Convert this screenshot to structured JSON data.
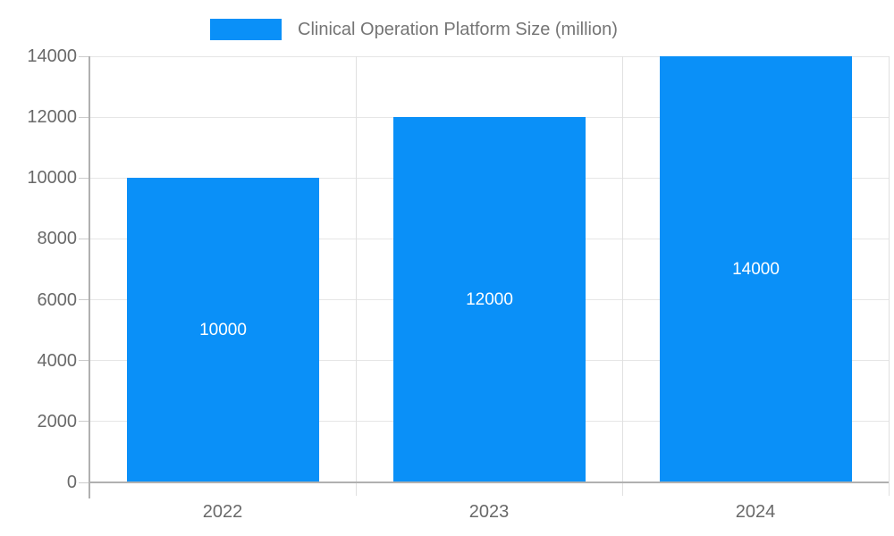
{
  "legend": {
    "label": "Clinical Operation Platform Size (million)"
  },
  "chart_data": {
    "type": "bar",
    "title": "Clinical Operation Platform Size (million)",
    "categories": [
      "2022",
      "2023",
      "2024"
    ],
    "values": [
      10000,
      12000,
      14000
    ],
    "bar_value_labels": [
      "10000",
      "12000",
      "14000"
    ],
    "xlabel": "",
    "ylabel": "",
    "ylim": [
      0,
      14000
    ],
    "ytick_interval": 2000,
    "yticks": [
      0,
      2000,
      4000,
      6000,
      8000,
      10000,
      12000,
      14000
    ],
    "ytick_labels": [
      "0",
      "2000",
      "4000",
      "6000",
      "8000",
      "10000",
      "12000",
      "14000"
    ],
    "grid": true,
    "legend_position": "top",
    "colors": {
      "bar": "#0a90f8",
      "horizontal_grid": "#e6e6e6",
      "vertical_grid": "#e0e0e0",
      "axis_line": "#b0b0b0",
      "tick": "#cccccc",
      "axis_text": "#696969",
      "legend_text": "#757575",
      "bar_label_text": "#ffffff",
      "background": "#ffffff"
    }
  }
}
